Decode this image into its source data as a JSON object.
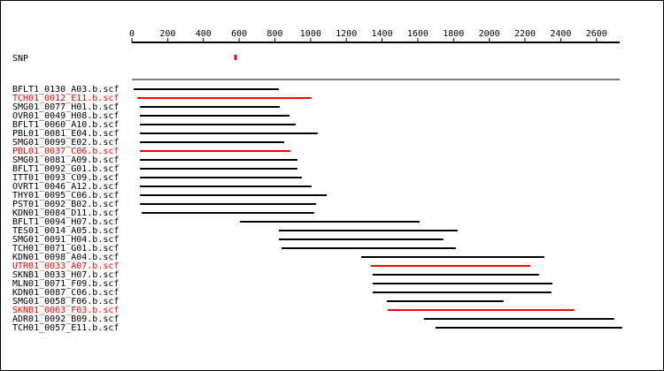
{
  "chart_data": {
    "type": "range",
    "xlim": [
      0,
      2730
    ],
    "xticks": [
      0,
      200,
      400,
      600,
      800,
      1000,
      1200,
      1400,
      1600,
      1800,
      2000,
      2200,
      2400,
      2600
    ],
    "snp": {
      "label": "SNP",
      "position": 580,
      "color": "#ff0000"
    },
    "rows": [
      {
        "name": "BFLT1_0130_A03.b.scf",
        "color": "#000000",
        "start": 10,
        "end": 822
      },
      {
        "name": "TCH01_0012_E11.b.scf",
        "color": "#ff0000",
        "start": 30,
        "end": 1005
      },
      {
        "name": "SMG01_0077_H01.b.scf",
        "color": "#000000",
        "start": 45,
        "end": 827
      },
      {
        "name": "OVR01_0049_H08.b.scf",
        "color": "#000000",
        "start": 45,
        "end": 882
      },
      {
        "name": "BFLT1_0060_A10.b.scf",
        "color": "#000000",
        "start": 45,
        "end": 916
      },
      {
        "name": "PBL01_0081_E04.b.scf",
        "color": "#000000",
        "start": 45,
        "end": 1040
      },
      {
        "name": "SMG01_0099_E02.b.scf",
        "color": "#000000",
        "start": 45,
        "end": 852
      },
      {
        "name": "PBL01_0037_C06.b.scf",
        "color": "#ff0000",
        "start": 45,
        "end": 887
      },
      {
        "name": "SMG01_0081_A09.b.scf",
        "color": "#000000",
        "start": 45,
        "end": 926
      },
      {
        "name": "BFLT1_0092_G01.b.scf",
        "color": "#000000",
        "start": 45,
        "end": 926
      },
      {
        "name": "ITT01_0093_C09.b.scf",
        "color": "#000000",
        "start": 45,
        "end": 951
      },
      {
        "name": "OVRT1_0046_A12.b.scf",
        "color": "#000000",
        "start": 45,
        "end": 1005
      },
      {
        "name": "THY01_0095_C06.b.scf",
        "color": "#000000",
        "start": 45,
        "end": 1090
      },
      {
        "name": "PST01_0092_B02.b.scf",
        "color": "#000000",
        "start": 45,
        "end": 1030
      },
      {
        "name": "KDN01_0084_D11.b.scf",
        "color": "#000000",
        "start": 55,
        "end": 1020
      },
      {
        "name": "BFLT1_0094_H07.b.scf",
        "color": "#000000",
        "start": 605,
        "end": 1610
      },
      {
        "name": "TES01_0014_A05.b.scf",
        "color": "#000000",
        "start": 822,
        "end": 1823
      },
      {
        "name": "SMG01_0091_H04.b.scf",
        "color": "#000000",
        "start": 822,
        "end": 1743
      },
      {
        "name": "TCH01_0071_G01.b.scf",
        "color": "#000000",
        "start": 837,
        "end": 1813
      },
      {
        "name": "KDN01_0098_A04.b.scf",
        "color": "#000000",
        "start": 1283,
        "end": 2308
      },
      {
        "name": "UTR01_0033_A07.b.scf",
        "color": "#ff0000",
        "start": 1337,
        "end": 2229
      },
      {
        "name": "SKNB1_0033_H07.b.scf",
        "color": "#000000",
        "start": 1347,
        "end": 2278
      },
      {
        "name": "MLN01_0071_F09.b.scf",
        "color": "#000000",
        "start": 1347,
        "end": 2353
      },
      {
        "name": "KDN01_0087_C06.b.scf",
        "color": "#000000",
        "start": 1347,
        "end": 2348
      },
      {
        "name": "SMG01_0058_F06.b.scf",
        "color": "#000000",
        "start": 1426,
        "end": 2080
      },
      {
        "name": "SKNB1_0063_F03.b.scf",
        "color": "#ff0000",
        "start": 1431,
        "end": 2476
      },
      {
        "name": "ADR01_0092_B09.b.scf",
        "color": "#000000",
        "start": 1634,
        "end": 2699
      },
      {
        "name": "TCH01_0057_E11.b.scf",
        "color": "#000000",
        "start": 1699,
        "end": 2744
      }
    ]
  }
}
